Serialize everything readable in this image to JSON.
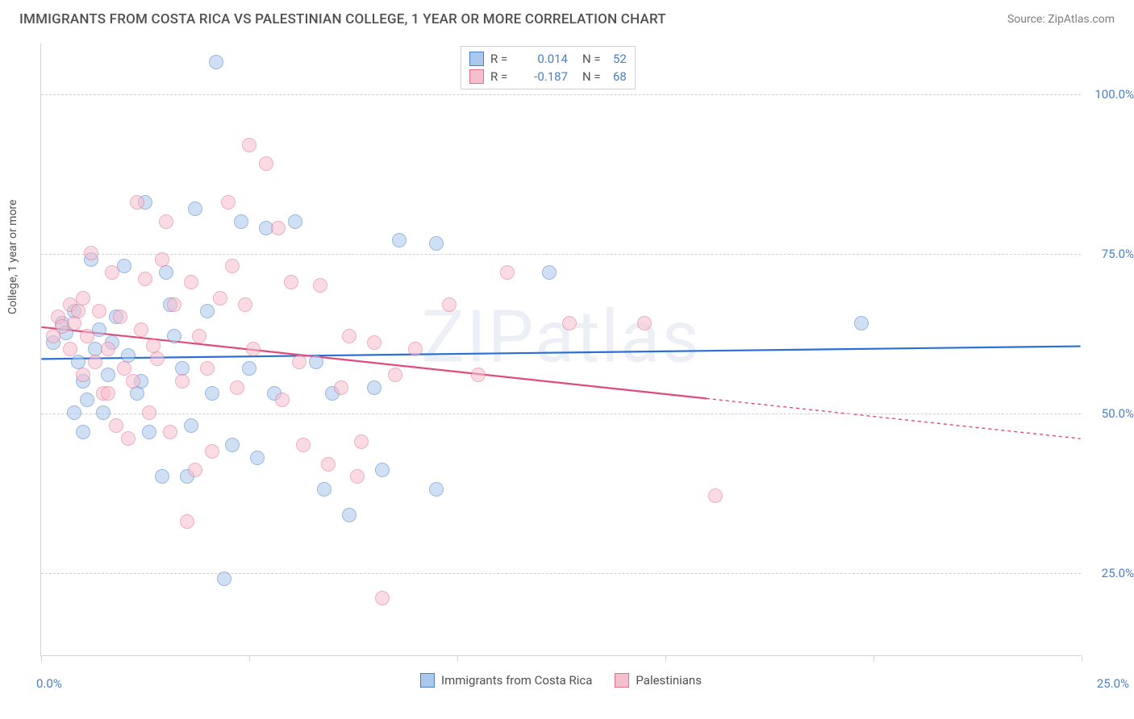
{
  "title": "IMMIGRANTS FROM COSTA RICA VS PALESTINIAN COLLEGE, 1 YEAR OR MORE CORRELATION CHART",
  "source": "Source: ZipAtlas.com",
  "y_axis_label": "College, 1 year or more",
  "watermark": "ZIPatlas",
  "chart": {
    "type": "scatter",
    "xlim": [
      0,
      25
    ],
    "ylim": [
      12,
      108
    ],
    "x_ticks": [
      0,
      5,
      10,
      15,
      20,
      25
    ],
    "x_tick_labels": {
      "0": "0.0%",
      "25": "25.0%"
    },
    "y_ticks": [
      25,
      50,
      75,
      100
    ],
    "y_tick_labels": {
      "25": "25.0%",
      "50": "50.0%",
      "75": "75.0%",
      "100": "100.0%"
    },
    "background_color": "#ffffff",
    "grid_color": "#cfcfcf",
    "axis_color": "#d4d4d4",
    "label_color": "#4a7fc4",
    "marker_radius": 9,
    "marker_opacity": 0.55,
    "series": [
      {
        "name": "Immigrants from Costa Rica",
        "fill": "#a9c8ec",
        "stroke": "#4a7fc4",
        "line_color": "#2a6fd6",
        "line_width": 2.2,
        "r_value": "0.014",
        "n_value": "52",
        "trend": {
          "x1": 0,
          "y1": 58.5,
          "x2": 25,
          "y2": 60.5,
          "extrapolate_from_x": null
        },
        "points": [
          [
            4.2,
            105
          ],
          [
            0.3,
            61
          ],
          [
            0.5,
            64
          ],
          [
            0.8,
            66
          ],
          [
            0.9,
            58
          ],
          [
            1.0,
            55
          ],
          [
            1.1,
            52
          ],
          [
            1.2,
            74
          ],
          [
            1.3,
            60
          ],
          [
            1.4,
            63
          ],
          [
            1.5,
            50
          ],
          [
            1.6,
            56
          ],
          [
            1.8,
            65
          ],
          [
            2.0,
            73
          ],
          [
            2.1,
            59
          ],
          [
            2.3,
            53
          ],
          [
            2.5,
            83
          ],
          [
            2.6,
            47
          ],
          [
            3.0,
            72
          ],
          [
            3.2,
            62
          ],
          [
            3.4,
            57
          ],
          [
            3.5,
            40
          ],
          [
            3.7,
            82
          ],
          [
            4.0,
            66
          ],
          [
            4.1,
            53
          ],
          [
            4.4,
            24
          ],
          [
            4.6,
            45
          ],
          [
            4.8,
            80
          ],
          [
            5.0,
            57
          ],
          [
            5.2,
            43
          ],
          [
            5.4,
            79
          ],
          [
            5.6,
            53
          ],
          [
            6.1,
            80
          ],
          [
            6.6,
            58
          ],
          [
            6.8,
            38
          ],
          [
            7.0,
            53
          ],
          [
            7.4,
            34
          ],
          [
            8.0,
            54
          ],
          [
            8.2,
            41
          ],
          [
            8.6,
            77
          ],
          [
            9.5,
            38
          ],
          [
            9.5,
            76.5
          ],
          [
            0.6,
            62.5
          ],
          [
            0.8,
            50
          ],
          [
            1.0,
            47
          ],
          [
            1.7,
            61
          ],
          [
            2.4,
            55
          ],
          [
            2.9,
            40
          ],
          [
            3.1,
            67
          ],
          [
            3.6,
            48
          ],
          [
            12.2,
            72
          ],
          [
            19.7,
            64
          ]
        ]
      },
      {
        "name": "Palestinians",
        "fill": "#f6bfcd",
        "stroke": "#e36f8f",
        "line_color": "#e04b79",
        "line_width": 2.2,
        "r_value": "-0.187",
        "n_value": "68",
        "trend": {
          "x1": 0,
          "y1": 63.5,
          "x2": 25,
          "y2": 46,
          "extrapolate_from_x": 16
        },
        "points": [
          [
            0.3,
            62
          ],
          [
            0.4,
            65
          ],
          [
            0.5,
            63.5
          ],
          [
            0.7,
            67
          ],
          [
            0.7,
            60
          ],
          [
            0.8,
            64
          ],
          [
            0.9,
            66
          ],
          [
            1.0,
            56
          ],
          [
            1.0,
            68
          ],
          [
            1.1,
            62
          ],
          [
            1.2,
            75
          ],
          [
            1.3,
            58
          ],
          [
            1.4,
            66
          ],
          [
            1.5,
            53
          ],
          [
            1.6,
            60
          ],
          [
            1.7,
            72
          ],
          [
            1.8,
            48
          ],
          [
            1.9,
            65
          ],
          [
            2.0,
            57
          ],
          [
            2.1,
            46
          ],
          [
            2.2,
            55
          ],
          [
            2.3,
            83
          ],
          [
            2.4,
            63
          ],
          [
            2.5,
            71
          ],
          [
            2.6,
            50
          ],
          [
            2.8,
            58.5
          ],
          [
            2.9,
            74
          ],
          [
            3.0,
            80
          ],
          [
            3.1,
            47
          ],
          [
            3.2,
            67
          ],
          [
            3.4,
            55
          ],
          [
            3.5,
            33
          ],
          [
            3.6,
            70.5
          ],
          [
            3.7,
            41
          ],
          [
            3.8,
            62
          ],
          [
            4.0,
            57
          ],
          [
            4.1,
            44
          ],
          [
            4.3,
            68
          ],
          [
            4.5,
            83
          ],
          [
            4.6,
            73
          ],
          [
            4.7,
            54
          ],
          [
            4.9,
            67
          ],
          [
            5.0,
            92
          ],
          [
            5.1,
            60
          ],
          [
            5.4,
            89
          ],
          [
            5.7,
            79
          ],
          [
            5.8,
            52
          ],
          [
            6.0,
            70.5
          ],
          [
            6.2,
            58
          ],
          [
            6.3,
            45
          ],
          [
            6.7,
            70
          ],
          [
            6.9,
            42
          ],
          [
            7.2,
            54
          ],
          [
            7.4,
            62
          ],
          [
            7.7,
            45.5
          ],
          [
            7.6,
            40
          ],
          [
            8.0,
            61
          ],
          [
            8.2,
            21
          ],
          [
            8.5,
            56
          ],
          [
            9.0,
            60
          ],
          [
            9.8,
            67
          ],
          [
            10.5,
            56
          ],
          [
            11.2,
            72
          ],
          [
            12.7,
            64
          ],
          [
            14.5,
            64
          ],
          [
            16.2,
            37
          ],
          [
            1.6,
            53
          ],
          [
            2.7,
            60.5
          ]
        ]
      }
    ]
  },
  "legend_bottom": [
    {
      "label": "Immigrants from Costa Rica",
      "fill": "#a9c8ec",
      "stroke": "#4a7fc4"
    },
    {
      "label": "Palestinians",
      "fill": "#f6bfcd",
      "stroke": "#e36f8f"
    }
  ]
}
